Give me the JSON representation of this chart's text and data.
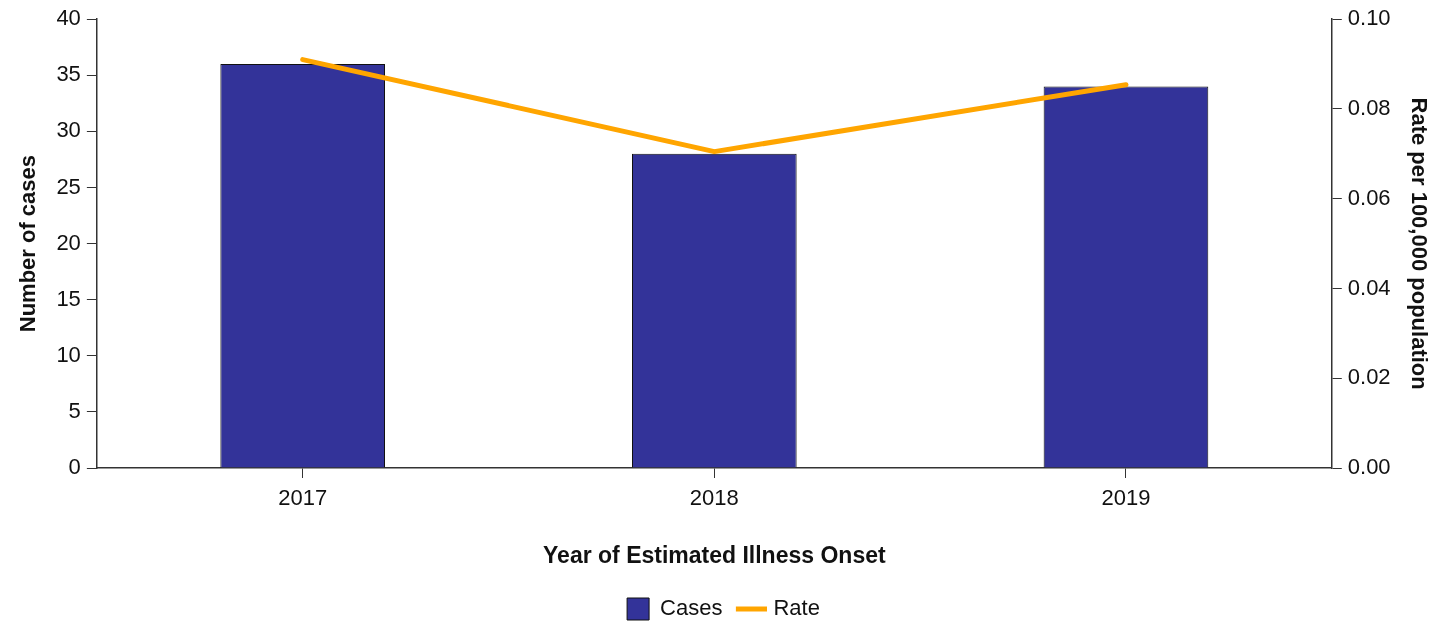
{
  "chart_data": {
    "type": "bar",
    "xlabel": "Year of Estimated Illness Onset",
    "ylabel": "Number of cases",
    "y2label": "Rate per 100,000 population",
    "categories": [
      "2017",
      "2018",
      "2019"
    ],
    "series": [
      {
        "name": "Cases",
        "color": "#333399",
        "values": [
          36,
          28,
          34
        ]
      },
      {
        "name": "Rate",
        "type": "line",
        "axis": "y2",
        "color": "#ffa500",
        "values": [
          0.091,
          0.0705,
          0.0854
        ]
      }
    ],
    "ylim": [
      0,
      40
    ],
    "yticks": [
      0,
      5,
      10,
      15,
      20,
      25,
      30,
      35,
      40
    ],
    "y2lim": [
      0,
      0.1
    ],
    "y2ticks": [
      {
        "value": 0,
        "label": "0.00"
      },
      {
        "value": 0.02,
        "label": "0.02"
      },
      {
        "value": 0.04,
        "label": "0.04"
      },
      {
        "value": 0.06,
        "label": "0.06"
      },
      {
        "value": 0.08,
        "label": "0.08"
      },
      {
        "value": 0.1,
        "label": "0.10"
      }
    ],
    "grid": false,
    "legend": "bottom",
    "marker": "none"
  }
}
